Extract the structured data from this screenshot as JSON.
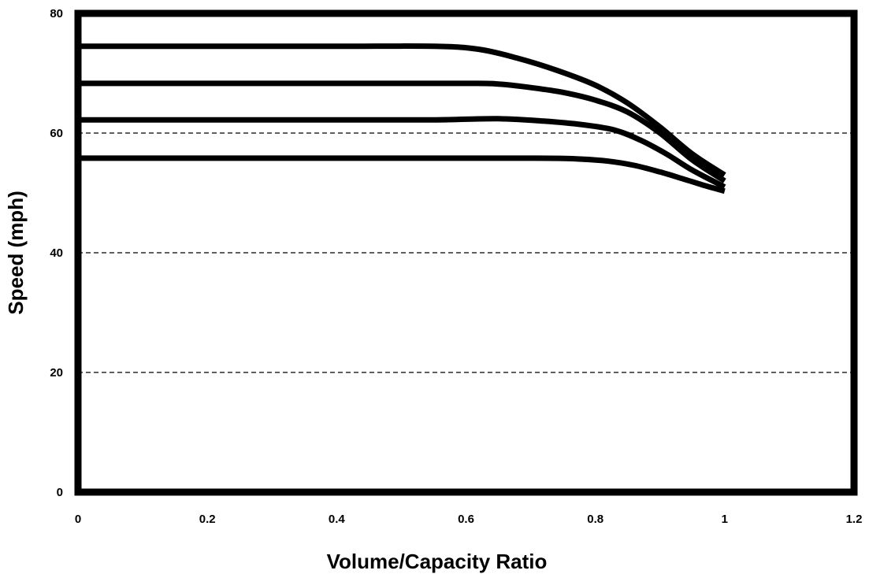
{
  "chart_data": {
    "type": "line",
    "title": "",
    "xlabel": "Volume/Capacity Ratio",
    "ylabel": "Speed (mph)",
    "xlim": [
      0,
      1.2
    ],
    "ylim": [
      0,
      80
    ],
    "x_ticks": [
      0,
      0.2,
      0.4,
      0.6,
      0.8,
      1,
      1.2
    ],
    "x_tick_labels": [
      "0",
      "0.2",
      "0.4",
      "0.6",
      "0.8",
      "1",
      "1.2"
    ],
    "y_ticks": [
      0,
      20,
      40,
      60,
      80
    ],
    "y_tick_labels": [
      "0",
      "20",
      "40",
      "60",
      "80"
    ],
    "grid": "horizontal dashed",
    "legend": "none",
    "line_color": "#000000",
    "series": [
      {
        "x": [
          0,
          0.2,
          0.4,
          0.55,
          0.62,
          0.68,
          0.74,
          0.8,
          0.85,
          0.9,
          0.95,
          1.0
        ],
        "y": [
          74.5,
          74.5,
          74.5,
          74.5,
          74.0,
          72.5,
          70.5,
          68.0,
          65.0,
          61.0,
          56.5,
          53.0
        ]
      },
      {
        "x": [
          0,
          0.2,
          0.4,
          0.6,
          0.65,
          0.7,
          0.75,
          0.8,
          0.85,
          0.9,
          0.95,
          1.0
        ],
        "y": [
          68.3,
          68.3,
          68.3,
          68.3,
          68.2,
          67.6,
          66.8,
          65.5,
          63.5,
          60.0,
          55.5,
          52.0
        ]
      },
      {
        "x": [
          0,
          0.2,
          0.4,
          0.55,
          0.65,
          0.72,
          0.78,
          0.83,
          0.87,
          0.91,
          0.95,
          1.0
        ],
        "y": [
          62.2,
          62.2,
          62.2,
          62.2,
          62.4,
          62.0,
          61.4,
          60.5,
          58.8,
          56.5,
          53.8,
          51.0
        ]
      },
      {
        "x": [
          0,
          0.2,
          0.4,
          0.6,
          0.7,
          0.77,
          0.82,
          0.86,
          0.9,
          0.94,
          0.97,
          1.0
        ],
        "y": [
          55.8,
          55.8,
          55.8,
          55.8,
          55.8,
          55.7,
          55.3,
          54.6,
          53.5,
          52.2,
          51.2,
          50.3
        ]
      }
    ]
  }
}
